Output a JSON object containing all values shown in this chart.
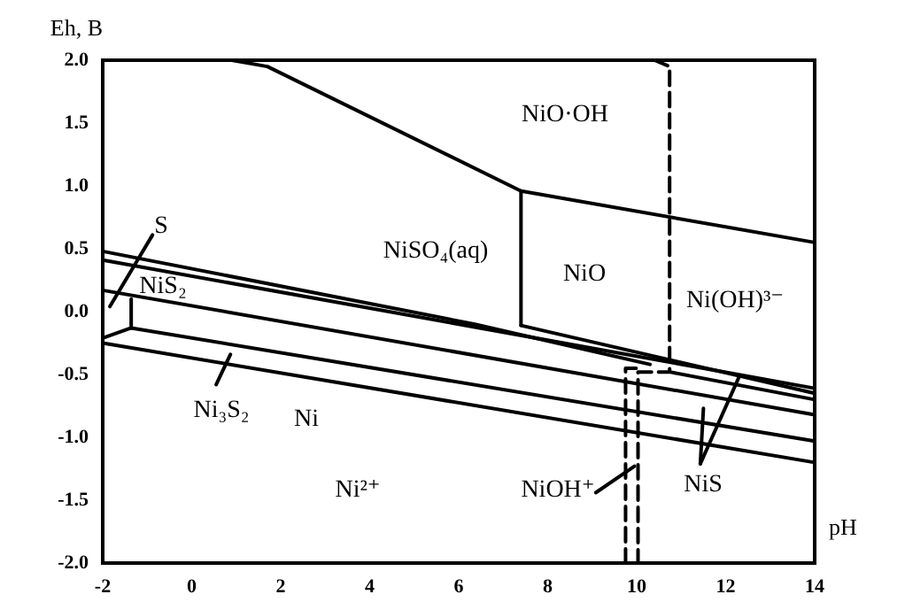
{
  "chart_data": {
    "type": "line",
    "xlabel": "pH",
    "ylabel": "Eh, B",
    "xlim": [
      -2,
      14
    ],
    "ylim": [
      -2,
      2
    ],
    "xticks": [
      -2,
      0,
      2,
      4,
      6,
      8,
      10,
      12,
      14
    ],
    "yticks": [
      {
        "value": -2,
        "label": "-2.0"
      },
      {
        "value": -1.5,
        "label": "-1.5"
      },
      {
        "value": -1,
        "label": "-1.0"
      },
      {
        "value": -0.5,
        "label": "-0.5"
      },
      {
        "value": 0,
        "label": "0.0"
      },
      {
        "value": 0.5,
        "label": "0.5"
      },
      {
        "value": 1,
        "label": "1.0"
      },
      {
        "value": 1.5,
        "label": "1.5"
      },
      {
        "value": 2,
        "label": "2.0"
      }
    ],
    "grid": false,
    "marker": "none",
    "line_style": "solid",
    "series": [
      {
        "color": "#000000",
        "x": [
          0.9,
          1.7,
          7.4,
          14
        ],
        "values": [
          2.0,
          1.95,
          0.96,
          0.55
        ]
      },
      {
        "color": "#000000",
        "x": [
          7.4,
          7.4
        ],
        "values": [
          0.96,
          -0.11
        ]
      },
      {
        "color": "#000000",
        "x": [
          -2,
          14
        ],
        "values": [
          0.41,
          -0.61
        ]
      },
      {
        "color": "#000000",
        "x": [
          -2,
          6.36,
          10.3
        ],
        "values": [
          0.48,
          -0.1,
          -0.42
        ]
      },
      {
        "color": "#000000",
        "x": [
          -2,
          14
        ],
        "values": [
          0.17,
          -0.82
        ]
      },
      {
        "color": "#000000",
        "x": [
          -2,
          -1.36,
          14
        ],
        "values": [
          -0.21,
          -0.13,
          -1.03
        ]
      },
      {
        "color": "#000000",
        "x": [
          -1.36,
          -1.36
        ],
        "values": [
          -0.13,
          0.1
        ]
      },
      {
        "color": "#000000",
        "x": [
          -2,
          14
        ],
        "values": [
          -0.25,
          -1.2
        ]
      },
      {
        "color": "#000000",
        "x": [
          7.4,
          14
        ],
        "values": [
          -0.11,
          -0.65
        ]
      },
      {
        "color": "#000000",
        "x": [
          10.74,
          14
        ],
        "values": [
          -0.48,
          -0.7
        ]
      },
      {
        "color": "#000000",
        "line_style": "dashed",
        "x": [
          10.4,
          10.74,
          10.74,
          10.03,
          10.03
        ],
        "values": [
          2.0,
          1.95,
          -0.48,
          -0.48,
          -2.0
        ]
      },
      {
        "color": "#000000",
        "line_style": "dashed",
        "x": [
          9.75,
          9.75,
          10.03
        ],
        "values": [
          -2.0,
          -0.45,
          -0.45
        ]
      },
      {
        "color": "#000000",
        "x": [
          -1.84,
          -0.88
        ],
        "values": [
          0.04,
          0.61
        ]
      },
      {
        "color": "#000000",
        "x": [
          0.55,
          0.87
        ],
        "values": [
          -0.58,
          -0.34
        ]
      },
      {
        "color": "#000000",
        "x": [
          9.08,
          9.95
        ],
        "values": [
          -1.44,
          -1.23
        ]
      },
      {
        "color": "#000000",
        "x": [
          11.43,
          11.5
        ],
        "values": [
          -1.21,
          -0.77
        ]
      },
      {
        "color": "#000000",
        "x": [
          11.43,
          12.3
        ],
        "values": [
          -1.21,
          -0.52
        ]
      }
    ],
    "annotations": [
      "NiO·OH",
      "NiSO₄(aq)",
      "NiO",
      "Ni(OH)³⁻",
      "S",
      "NiS₂",
      "Ni₃S₂",
      "Ni",
      "Ni²⁺",
      "NiOH⁺",
      "NiS"
    ]
  }
}
